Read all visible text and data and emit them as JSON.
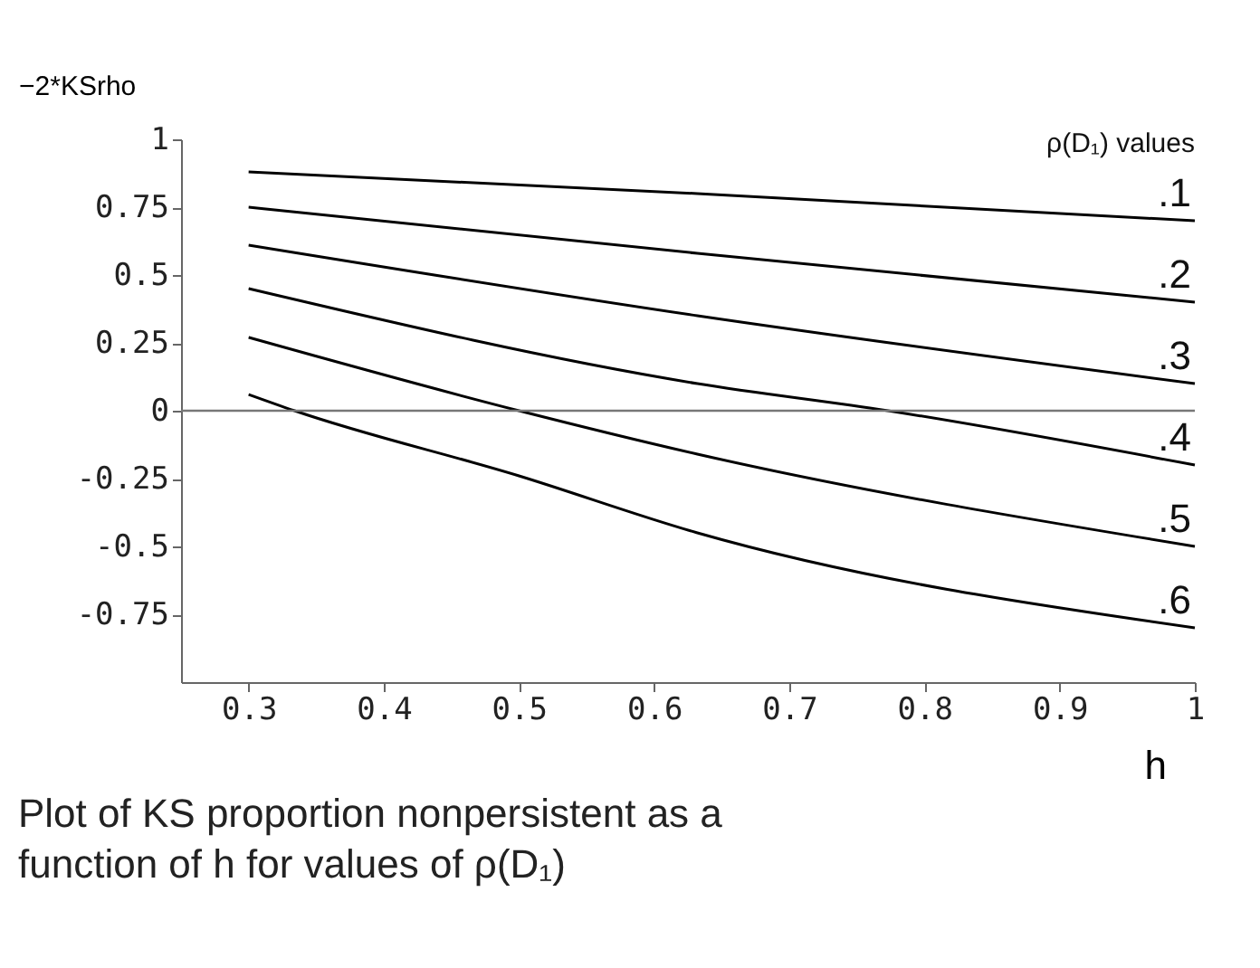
{
  "chart_data": {
    "type": "line",
    "xlabel": "h",
    "ylabel": "−2*KSrho",
    "legend_title": "ρ(D₁) values",
    "annotations": [
      "Plot of KS proportion nonpersistent as a function of h for values of ρ(D₁)"
    ],
    "xlim": [
      0.25,
      1
    ],
    "xticks": [
      0.3,
      0.4,
      0.5,
      0.6,
      0.7,
      0.8,
      0.9,
      1
    ],
    "ylim": [
      -1,
      1
    ],
    "yticks": [
      1,
      0.75,
      0.5,
      0.25,
      0,
      -0.25,
      -0.5,
      -0.75
    ],
    "grid": false,
    "legend": false,
    "marker": "none",
    "line_style": "solid",
    "ref_lines": [
      {
        "axis": "y",
        "value": 0,
        "color": "#777777"
      }
    ],
    "series": [
      {
        "name": ".1",
        "color": "#000000",
        "x": [
          0.3,
          0.632,
          1
        ],
        "values": [
          0.88,
          0.8,
          0.7
        ]
      },
      {
        "name": ".2",
        "color": "#000000",
        "x": [
          0.3,
          0.632,
          1
        ],
        "values": [
          0.75,
          0.58,
          0.4
        ]
      },
      {
        "name": ".3",
        "color": "#000000",
        "x": [
          0.3,
          0.632,
          1
        ],
        "values": [
          0.61,
          0.35,
          0.1
        ]
      },
      {
        "name": ".4",
        "color": "#000000",
        "x": [
          0.3,
          0.632,
          0.773,
          1
        ],
        "values": [
          0.45,
          0.1,
          0,
          -0.2
        ]
      },
      {
        "name": ".5",
        "color": "#000000",
        "x": [
          0.3,
          0.5,
          0.632,
          1
        ],
        "values": [
          0.27,
          0,
          -0.16,
          -0.5
        ]
      },
      {
        "name": ".6",
        "color": "#000000",
        "x": [
          0.3,
          0.334,
          0.5,
          0.632,
          1
        ],
        "values": [
          0.06,
          0,
          -0.24,
          -0.45,
          -0.8
        ]
      }
    ]
  }
}
